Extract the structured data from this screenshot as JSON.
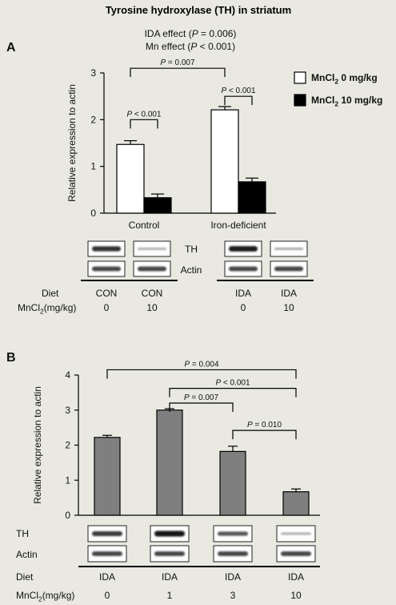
{
  "figure": {
    "title": "Tyrosine hydroxylase (TH) in striatum"
  },
  "panel_a": {
    "letter": "A",
    "effect_lines": [
      {
        "prefix": "IDA effect (",
        "p": "P",
        "suffix": " = 0.006)"
      },
      {
        "prefix": "Mn effect (",
        "p": "P",
        "suffix": " < 0.001)"
      }
    ],
    "blot_labels": {
      "th": "TH",
      "actin": "Actin"
    },
    "row_labels": {
      "diet": "Diet",
      "mncl2_pre": "MnCl",
      "mncl2_sub": "2",
      "mncl2_post": "(mg/kg)"
    },
    "lanes": [
      {
        "diet": "CON",
        "mn": "0"
      },
      {
        "diet": "CON",
        "mn": "10"
      },
      {
        "diet": "IDA",
        "mn": "0"
      },
      {
        "diet": "IDA",
        "mn": "10"
      }
    ],
    "blots": {
      "th": [
        {
          "strength": 0.85
        },
        {
          "strength": 0.18
        },
        {
          "strength": 0.95
        },
        {
          "strength": 0.22
        }
      ],
      "actin": [
        {
          "strength": 0.75
        },
        {
          "strength": 0.75
        },
        {
          "strength": 0.75
        },
        {
          "strength": 0.75
        }
      ]
    }
  },
  "panel_b": {
    "letter": "B",
    "blot_labels": {
      "th": "TH",
      "actin": "Actin"
    },
    "row_labels": {
      "diet": "Diet",
      "mncl2_pre": "MnCl",
      "mncl2_sub": "2",
      "mncl2_post": "(mg/kg)"
    },
    "lanes": [
      {
        "diet": "IDA",
        "mn": "0"
      },
      {
        "diet": "IDA",
        "mn": "1"
      },
      {
        "diet": "IDA",
        "mn": "3"
      },
      {
        "diet": "IDA",
        "mn": "10"
      }
    ],
    "blots": {
      "th": [
        {
          "strength": 0.8
        },
        {
          "strength": 1.0
        },
        {
          "strength": 0.65
        },
        {
          "strength": 0.2
        }
      ],
      "actin": [
        {
          "strength": 0.75
        },
        {
          "strength": 0.75
        },
        {
          "strength": 0.75
        },
        {
          "strength": 0.75
        }
      ]
    }
  },
  "chart_data": [
    {
      "type": "bar",
      "panel": "A",
      "categories": [
        "Control",
        "Iron-deficient"
      ],
      "series": [
        {
          "name": "MnCl2 0 mg/kg",
          "legend_pre": "MnCl",
          "legend_sub": "2",
          "legend_post": " 0 mg/kg",
          "color": "#ffffff",
          "values": [
            1.47,
            2.21
          ],
          "errors": [
            0.08,
            0.07
          ]
        },
        {
          "name": "MnCl2 10 mg/kg",
          "legend_pre": "MnCl",
          "legend_sub": "2",
          "legend_post": " 10 mg/kg",
          "color": "#000000",
          "values": [
            0.33,
            0.67
          ],
          "errors": [
            0.08,
            0.08
          ]
        }
      ],
      "ylabel": "Relative expression to actin",
      "ylim": [
        0,
        3
      ],
      "yticks": [
        0,
        1,
        2,
        3
      ],
      "legend": "top-right",
      "grid": false,
      "significance": [
        {
          "label_p": "P",
          "label_rest": " < 0.001",
          "from": {
            "category": 0,
            "series": 0
          },
          "to": {
            "category": 0,
            "series": 1
          },
          "level": 2.0
        },
        {
          "label_p": "P",
          "label_rest": " < 0.001",
          "from": {
            "category": 1,
            "series": 0
          },
          "to": {
            "category": 1,
            "series": 1
          },
          "level": 2.5
        },
        {
          "label_p": "P",
          "label_rest": " = 0.007",
          "from": {
            "category": 0,
            "series": 0
          },
          "to": {
            "category": 1,
            "series": 0
          },
          "level": 3.1
        }
      ]
    },
    {
      "type": "bar",
      "panel": "B",
      "categories": [
        "0",
        "1",
        "3",
        "10"
      ],
      "series": [
        {
          "color": "#7f7f7f",
          "values": [
            2.22,
            3.0,
            1.82,
            0.67
          ],
          "errors": [
            0.06,
            0.04,
            0.15,
            0.08
          ]
        }
      ],
      "ylabel": "Relative expression to actin",
      "ylim": [
        0,
        4
      ],
      "yticks": [
        0,
        1,
        2,
        3,
        4
      ],
      "grid": false,
      "significance": [
        {
          "label_p": "P",
          "label_rest": " = 0.004",
          "from": 0,
          "to": 3,
          "level": 4.15
        },
        {
          "label_p": "P",
          "label_rest": " < 0.001",
          "from": 1,
          "to": 3,
          "level": 3.62
        },
        {
          "label_p": "P",
          "label_rest": " = 0.007",
          "from": 1,
          "to": 2,
          "level": 3.2
        },
        {
          "label_p": "P",
          "label_rest": " = 0.010",
          "from": 2,
          "to": 3,
          "level": 2.42
        }
      ]
    }
  ]
}
